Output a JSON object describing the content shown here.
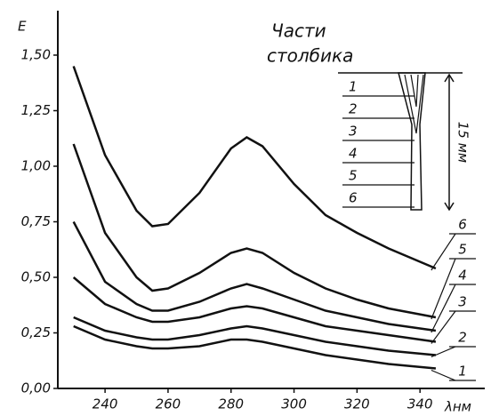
{
  "chart_data": {
    "type": "line",
    "y_label": "E",
    "x_label": "λнм",
    "x": [
      230,
      240,
      250,
      255,
      260,
      270,
      280,
      285,
      290,
      300,
      310,
      320,
      330,
      345
    ],
    "series": [
      {
        "name": "1",
        "color": "#111111",
        "values": [
          0.28,
          0.22,
          0.19,
          0.18,
          0.18,
          0.19,
          0.22,
          0.22,
          0.21,
          0.18,
          0.15,
          0.13,
          0.11,
          0.09
        ]
      },
      {
        "name": "2",
        "color": "#111111",
        "values": [
          0.32,
          0.26,
          0.23,
          0.22,
          0.22,
          0.24,
          0.27,
          0.28,
          0.27,
          0.24,
          0.21,
          0.19,
          0.17,
          0.15
        ]
      },
      {
        "name": "3",
        "color": "#111111",
        "values": [
          0.5,
          0.38,
          0.32,
          0.3,
          0.3,
          0.32,
          0.36,
          0.37,
          0.36,
          0.32,
          0.28,
          0.26,
          0.24,
          0.21
        ]
      },
      {
        "name": "4",
        "color": "#111111",
        "values": [
          0.75,
          0.48,
          0.38,
          0.35,
          0.35,
          0.39,
          0.45,
          0.47,
          0.45,
          0.4,
          0.35,
          0.32,
          0.29,
          0.26
        ]
      },
      {
        "name": "5",
        "color": "#111111",
        "values": [
          1.1,
          0.7,
          0.5,
          0.44,
          0.45,
          0.52,
          0.61,
          0.63,
          0.61,
          0.52,
          0.45,
          0.4,
          0.36,
          0.32
        ]
      },
      {
        "name": "6",
        "color": "#111111",
        "values": [
          1.45,
          1.05,
          0.8,
          0.73,
          0.74,
          0.88,
          1.08,
          1.13,
          1.09,
          0.92,
          0.78,
          0.7,
          0.63,
          0.54
        ]
      }
    ],
    "xlim": [
      225,
      360
    ],
    "xticks": [
      240,
      260,
      280,
      300,
      320,
      340
    ],
    "ylim": [
      0,
      1.7
    ],
    "yticks": [
      {
        "value": 0,
        "label": "0,00"
      },
      {
        "value": 0.25,
        "label": "0,25"
      },
      {
        "value": 0.5,
        "label": "0,50"
      },
      {
        "value": 0.75,
        "label": "0,75"
      },
      {
        "value": 1.0,
        "label": "1,00"
      },
      {
        "value": 1.25,
        "label": "1,25"
      },
      {
        "value": 1.5,
        "label": "1,50"
      }
    ],
    "grid": false,
    "inset_title": [
      "Части",
      "столбика"
    ],
    "inset_parts": [
      "1",
      "2",
      "3",
      "4",
      "5",
      "6"
    ],
    "inset_length": "15 мм"
  }
}
